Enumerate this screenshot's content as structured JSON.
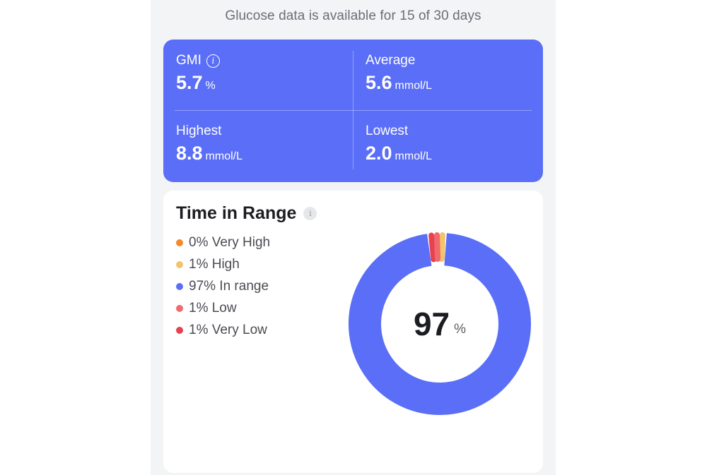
{
  "availability_text": "Glucose data is available for 15 of 30 days",
  "stats": {
    "gmi": {
      "label": "GMI",
      "value": "5.7",
      "unit": "%",
      "info_icon": "info-icon"
    },
    "average": {
      "label": "Average",
      "value": "5.6",
      "unit": "mmol/L"
    },
    "highest": {
      "label": "Highest",
      "value": "8.8",
      "unit": "mmol/L"
    },
    "lowest": {
      "label": "Lowest",
      "value": "2.0",
      "unit": "mmol/L"
    }
  },
  "colors": {
    "card_accent": "#5a6ef7",
    "very_high": "#f5882b",
    "high": "#f3c46a",
    "in_range": "#5a6ef7",
    "low": "#f06a6d",
    "very_low": "#e8414f"
  },
  "time_in_range": {
    "title": "Time in Range",
    "info_icon": "info-icon",
    "legend": [
      {
        "label": "0% Very High",
        "percent": 0,
        "color": "#f5882b"
      },
      {
        "label": "1% High",
        "percent": 1,
        "color": "#f3c46a"
      },
      {
        "label": "97% In range",
        "percent": 97,
        "color": "#5a6ef7"
      },
      {
        "label": "1% Low",
        "percent": 1,
        "color": "#f06a6d"
      },
      {
        "label": "1% Very Low",
        "percent": 1,
        "color": "#e8414f"
      }
    ],
    "center_value": "97",
    "center_unit": "%"
  }
}
